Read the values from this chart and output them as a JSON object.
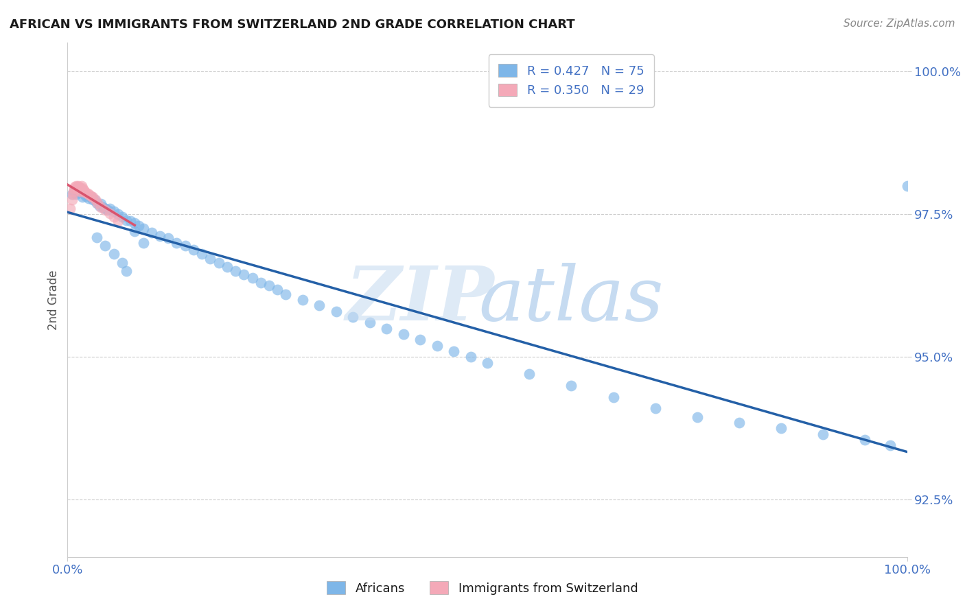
{
  "title": "AFRICAN VS IMMIGRANTS FROM SWITZERLAND 2ND GRADE CORRELATION CHART",
  "source_text": "Source: ZipAtlas.com",
  "ylabel": "2nd Grade",
  "xlim": [
    0.0,
    1.0
  ],
  "ylim": [
    0.915,
    1.005
  ],
  "yticks": [
    0.925,
    0.95,
    0.975,
    1.0
  ],
  "ytick_labels": [
    "92.5%",
    "95.0%",
    "97.5%",
    "100.0%"
  ],
  "africans_color": "#7EB6E8",
  "swiss_color": "#F4A9B8",
  "trendline_african_color": "#2460A7",
  "trendline_swiss_color": "#D9546E",
  "africans_x": [
    0.005,
    0.008,
    0.01,
    0.012,
    0.013,
    0.015,
    0.016,
    0.018,
    0.02,
    0.022,
    0.025,
    0.028,
    0.03,
    0.032,
    0.035,
    0.038,
    0.04,
    0.042,
    0.045,
    0.048,
    0.05,
    0.055,
    0.06,
    0.065,
    0.07,
    0.075,
    0.08,
    0.085,
    0.09,
    0.1,
    0.11,
    0.12,
    0.13,
    0.14,
    0.15,
    0.16,
    0.17,
    0.18,
    0.19,
    0.2,
    0.21,
    0.22,
    0.23,
    0.24,
    0.25,
    0.26,
    0.28,
    0.3,
    0.32,
    0.34,
    0.36,
    0.38,
    0.4,
    0.42,
    0.44,
    0.46,
    0.48,
    0.5,
    0.55,
    0.6,
    0.65,
    0.7,
    0.75,
    0.8,
    0.85,
    0.9,
    0.95,
    0.98,
    1.0,
    0.035,
    0.045,
    0.055,
    0.065,
    0.07,
    0.08,
    0.09
  ],
  "africans_y": [
    0.9785,
    0.979,
    0.9785,
    0.9795,
    0.9788,
    0.9792,
    0.9795,
    0.978,
    0.9785,
    0.9782,
    0.9778,
    0.978,
    0.9775,
    0.9775,
    0.977,
    0.9765,
    0.9768,
    0.9762,
    0.976,
    0.9758,
    0.976,
    0.9755,
    0.975,
    0.9745,
    0.974,
    0.9738,
    0.9735,
    0.973,
    0.9725,
    0.9718,
    0.9712,
    0.9708,
    0.97,
    0.9695,
    0.9688,
    0.968,
    0.9672,
    0.9665,
    0.9658,
    0.965,
    0.9645,
    0.9638,
    0.963,
    0.9625,
    0.9618,
    0.961,
    0.96,
    0.959,
    0.958,
    0.957,
    0.956,
    0.955,
    0.954,
    0.953,
    0.952,
    0.951,
    0.95,
    0.949,
    0.947,
    0.945,
    0.943,
    0.941,
    0.9395,
    0.9385,
    0.9375,
    0.9365,
    0.9355,
    0.9345,
    0.98,
    0.971,
    0.9695,
    0.968,
    0.9665,
    0.965,
    0.972,
    0.97
  ],
  "swiss_x": [
    0.003,
    0.005,
    0.006,
    0.007,
    0.008,
    0.009,
    0.01,
    0.011,
    0.012,
    0.013,
    0.014,
    0.015,
    0.016,
    0.017,
    0.018,
    0.019,
    0.02,
    0.022,
    0.024,
    0.026,
    0.028,
    0.03,
    0.033,
    0.036,
    0.04,
    0.045,
    0.05,
    0.055,
    0.06
  ],
  "swiss_y": [
    0.976,
    0.9775,
    0.9785,
    0.979,
    0.9795,
    0.9798,
    0.98,
    0.9795,
    0.9798,
    0.98,
    0.9792,
    0.979,
    0.9795,
    0.98,
    0.9796,
    0.9792,
    0.979,
    0.9788,
    0.9786,
    0.9784,
    0.9782,
    0.978,
    0.9775,
    0.977,
    0.9762,
    0.9758,
    0.9752,
    0.9745,
    0.9738
  ]
}
